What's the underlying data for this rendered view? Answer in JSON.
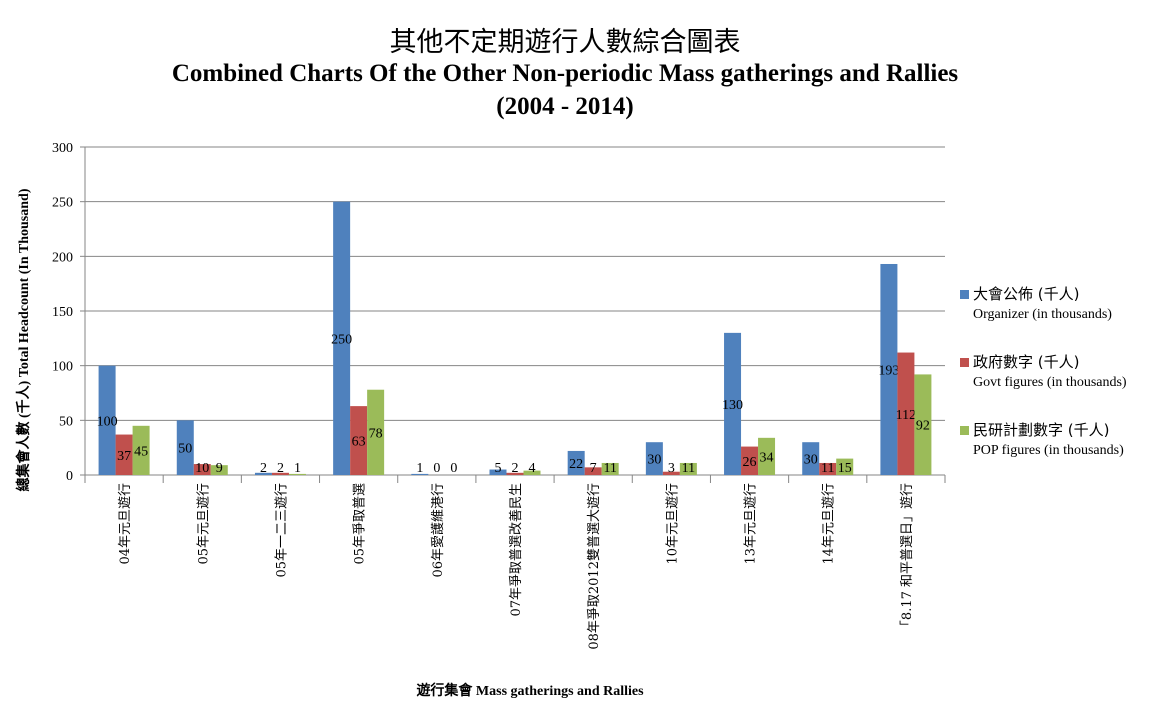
{
  "chart_data": {
    "type": "bar",
    "title": "其他不定期遊行人數綜合圖表",
    "subtitle": "Combined Charts Of the Other Non-periodic Mass gatherings and Rallies",
    "period": "(2004 - 2014)",
    "xlabel": "遊行集會 Mass gatherings and Rallies",
    "ylabel": "總集會人數 (千人) Total Headcount (In Thousand)",
    "ylim": [
      0,
      300
    ],
    "yticks": [
      0,
      50,
      100,
      150,
      200,
      250,
      300
    ],
    "grid": true,
    "legend_position": "right",
    "categories": [
      "04年元旦遊行",
      "05年元旦遊行",
      "05年一二三遊行",
      "05年爭取普選",
      "06年愛護維港行",
      "07年爭取普選改善民生",
      "08年爭取2012雙普選大遊行",
      "10年元旦遊行",
      "13年元旦遊行",
      "14年元旦遊行",
      "「8.17 和平普選日」遊行"
    ],
    "series": [
      {
        "name": "大會公佈 (千人)",
        "name_en": "Organizer  (in thousands)",
        "color": "#4F81BD",
        "values": [
          100,
          50,
          2,
          250,
          1,
          5,
          22,
          30,
          130,
          30,
          193
        ]
      },
      {
        "name": "政府數字 (千人)",
        "name_en": "Govt figures  (in thousands)",
        "color": "#C0504D",
        "values": [
          37,
          10,
          2,
          63,
          0,
          2,
          7,
          3,
          26,
          11,
          112
        ]
      },
      {
        "name": "民研計劃數字 (千人)",
        "name_en": "POP figures  (in thousands)",
        "color": "#9BBB59",
        "values": [
          45,
          9,
          1,
          78,
          0,
          4,
          11,
          11,
          34,
          15,
          92
        ]
      }
    ]
  }
}
